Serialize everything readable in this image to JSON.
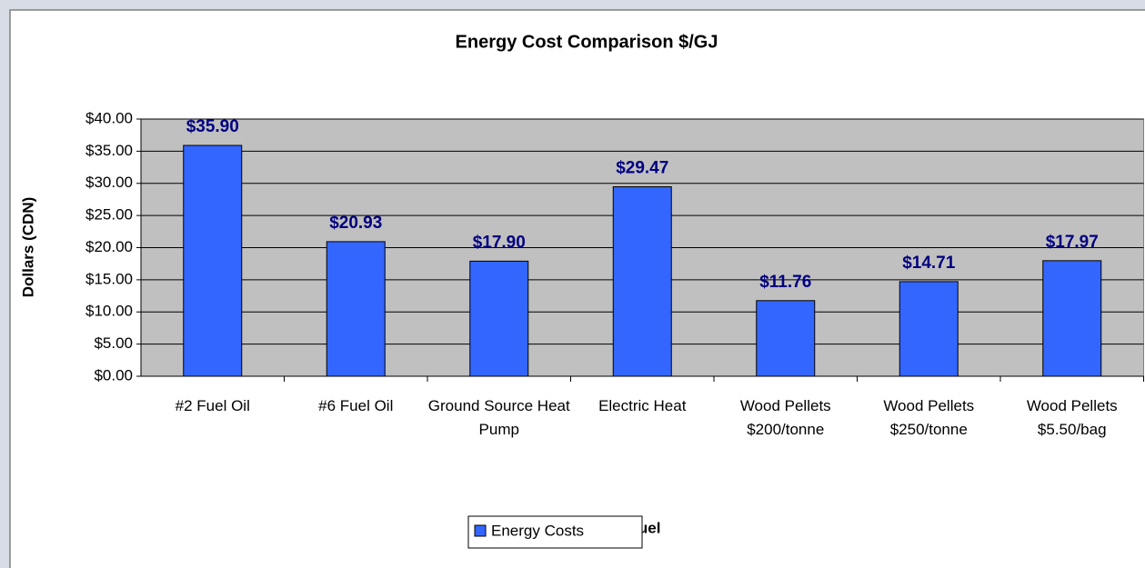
{
  "chart_data": {
    "type": "bar",
    "title": "Energy Cost Comparison $/GJ",
    "x_label": "Fuel",
    "y_label": "Dollars (CDN)",
    "categories": [
      "#2 Fuel Oil",
      "#6 Fuel Oil",
      "Ground Source Heat Pump",
      "Electric Heat",
      "Wood Pellets $200/tonne",
      "Wood Pellets $250/tonne",
      "Wood Pellets $5.50/bag"
    ],
    "series": [
      {
        "name": "Energy Costs",
        "color": "#3366ff",
        "values": [
          35.9,
          20.93,
          17.9,
          29.47,
          11.76,
          14.71,
          17.97
        ],
        "value_labels": [
          "$35.90",
          "$20.93",
          "$17.90",
          "$29.47",
          "$11.76",
          "$14.71",
          "$17.97"
        ]
      }
    ],
    "ylim": [
      0,
      40
    ],
    "yticks": [
      {
        "value": 0,
        "label": "$0.00"
      },
      {
        "value": 5,
        "label": "$5.00"
      },
      {
        "value": 10,
        "label": "$10.00"
      },
      {
        "value": 15,
        "label": "$15.00"
      },
      {
        "value": 20,
        "label": "$20.00"
      },
      {
        "value": 25,
        "label": "$25.00"
      },
      {
        "value": 30,
        "label": "$30.00"
      },
      {
        "value": 35,
        "label": "$35.00"
      },
      {
        "value": 40,
        "label": "$40.00"
      }
    ],
    "grid": true,
    "legend": "bottom"
  }
}
